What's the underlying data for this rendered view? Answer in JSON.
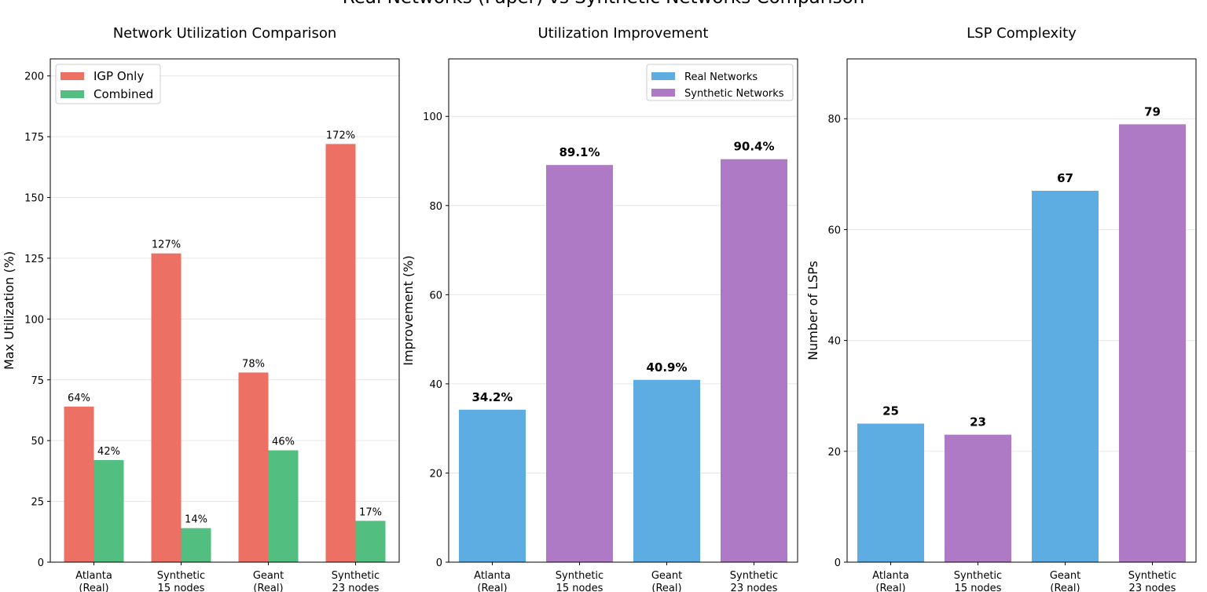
{
  "figure": {
    "suptitle": "Real Networks (Paper) vs Synthetic Networks Comparison"
  },
  "chart_data": [
    {
      "type": "bar",
      "title": "Network Utilization Comparison",
      "xlabel": "",
      "ylabel": "Max Utilization (%)",
      "categories": [
        [
          "Atlanta",
          "(Real)"
        ],
        [
          "Synthetic",
          "15 nodes"
        ],
        [
          "Geant",
          "(Real)"
        ],
        [
          "Synthetic",
          "23 nodes"
        ]
      ],
      "series": [
        {
          "name": "IGP Only",
          "color": "#ec7063",
          "values": [
            64,
            127,
            78,
            172
          ],
          "labels": [
            "64%",
            "127%",
            "78%",
            "172%"
          ]
        },
        {
          "name": "Combined",
          "color": "#52be80",
          "values": [
            42,
            14,
            46,
            17
          ],
          "labels": [
            "42%",
            "14%",
            "46%",
            "17%"
          ]
        }
      ],
      "ylim": [
        0,
        207
      ],
      "yticks": [
        0,
        25,
        50,
        75,
        100,
        125,
        150,
        175,
        200
      ],
      "grid": "y",
      "legend": "upper-left"
    },
    {
      "type": "bar",
      "title": "Utilization Improvement",
      "xlabel": "",
      "ylabel": "Improvement (%)",
      "categories": [
        [
          "Atlanta",
          "(Real)"
        ],
        [
          "Synthetic",
          "15 nodes"
        ],
        [
          "Geant",
          "(Real)"
        ],
        [
          "Synthetic",
          "23 nodes"
        ]
      ],
      "values": [
        34.2,
        89.1,
        40.9,
        90.4
      ],
      "labels": [
        "34.2%",
        "89.1%",
        "40.9%",
        "90.4%"
      ],
      "bar_colors": [
        "#5dade2",
        "#af7ac5",
        "#5dade2",
        "#af7ac5"
      ],
      "legend_entries": [
        {
          "name": "Real Networks",
          "color": "#5dade2"
        },
        {
          "name": "Synthetic Networks",
          "color": "#af7ac5"
        }
      ],
      "ylim": [
        0,
        112.9
      ],
      "yticks": [
        0,
        20,
        40,
        60,
        80,
        100
      ],
      "grid": "y",
      "legend": "upper-right"
    },
    {
      "type": "bar",
      "title": "LSP Complexity",
      "xlabel": "",
      "ylabel": "Number of LSPs",
      "categories": [
        [
          "Atlanta",
          "(Real)"
        ],
        [
          "Synthetic",
          "15 nodes"
        ],
        [
          "Geant",
          "(Real)"
        ],
        [
          "Synthetic",
          "23 nodes"
        ]
      ],
      "values": [
        25,
        23,
        67,
        79
      ],
      "labels": [
        "25",
        "23",
        "67",
        "79"
      ],
      "bar_colors": [
        "#5dade2",
        "#af7ac5",
        "#5dade2",
        "#af7ac5"
      ],
      "ylim": [
        0,
        90.8
      ],
      "yticks": [
        0,
        20,
        40,
        60,
        80
      ],
      "grid": "y"
    }
  ]
}
